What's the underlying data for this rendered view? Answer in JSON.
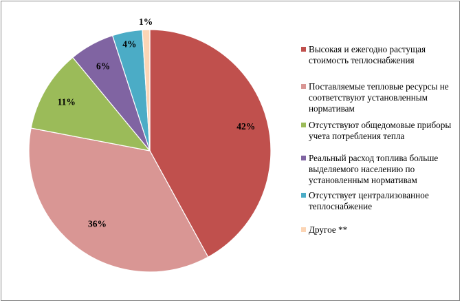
{
  "chart_data": {
    "type": "pie",
    "title": "",
    "legend_position": "right",
    "slices": [
      {
        "label": "Высокая и ежегодно растущая стоимость теплоснабжения",
        "value": 42,
        "display": "42%",
        "color": "#c0504d"
      },
      {
        "label": "Поставляемые тепловые ресурсы  не соответствуют установленным нормативам",
        "value": 36,
        "display": "36%",
        "color": "#d99694"
      },
      {
        "label": "Отсутствуют  общедомовые приборы учета потребления тепла",
        "value": 11,
        "display": "11%",
        "color": "#9bbb59"
      },
      {
        "label": "Реальный расход топлива больше выделяемого населению по установленным  нормативам",
        "value": 6,
        "display": "6%",
        "color": "#8064a2"
      },
      {
        "label": "Отсутствует  централизованное теплоснабжение",
        "value": 4,
        "display": "4%",
        "color": "#4bacc6"
      },
      {
        "label": "Другое **",
        "value": 1,
        "display": "1%",
        "color": "#fcd5b5"
      }
    ]
  }
}
